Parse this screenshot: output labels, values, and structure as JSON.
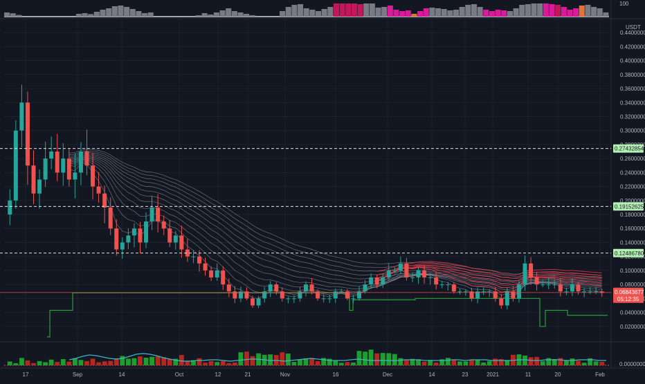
{
  "colors": {
    "background": "#131722",
    "grid": "#1e222d",
    "axis_text": "#b2b5be",
    "candle_up": "#26a69a",
    "candle_down": "#ef5350",
    "ma_line": "#b0b3bc",
    "ribbon_red": "#f23645",
    "ribbon_green": "#1fa45a",
    "stop_line": "#2a9d3a",
    "ind_line": "#3fb8c8",
    "price_tag_green": "#b4f0b4",
    "price_tag_red": "#ef5350",
    "top_gray": "#787b86",
    "top_red": "#c2185b",
    "top_magenta": "#d81b9a",
    "top_orange": "#e0733a"
  },
  "top_panel": {
    "scale_label": "100",
    "bars": [
      30,
      24,
      12,
      0,
      0,
      0,
      0,
      0,
      0,
      0,
      0,
      0,
      20,
      25,
      18,
      35,
      50,
      60,
      75,
      80,
      70,
      55,
      40,
      25,
      30,
      0,
      0,
      0,
      0,
      0,
      0,
      0,
      10,
      25,
      15,
      30,
      45,
      60,
      40,
      30,
      20,
      10,
      0,
      0,
      0,
      0,
      40,
      70,
      85,
      90,
      60,
      50,
      40,
      55,
      70,
      95,
      95,
      95,
      95,
      90,
      95,
      95,
      65,
      70,
      80,
      50,
      40,
      45,
      20,
      40,
      60,
      65,
      60,
      55,
      45,
      50,
      70,
      85,
      90,
      70,
      50,
      40,
      50,
      45,
      40,
      60,
      85,
      90,
      95,
      95,
      95,
      90,
      85,
      70,
      50,
      60,
      80,
      85,
      70,
      60,
      30
    ],
    "bar_colors": [
      "g",
      "g",
      "g",
      "g",
      "g",
      "g",
      "g",
      "g",
      "g",
      "g",
      "g",
      "g",
      "g",
      "g",
      "g",
      "g",
      "g",
      "g",
      "g",
      "g",
      "g",
      "g",
      "g",
      "g",
      "g",
      "g",
      "g",
      "g",
      "g",
      "g",
      "g",
      "g",
      "g",
      "g",
      "g",
      "g",
      "g",
      "g",
      "g",
      "g",
      "g",
      "g",
      "g",
      "g",
      "g",
      "g",
      "g",
      "g",
      "g",
      "g",
      "g",
      "g",
      "g",
      "g",
      "g",
      "r",
      "r",
      "r",
      "r",
      "r",
      "g",
      "g",
      "g",
      "g",
      "m",
      "m",
      "m",
      "m",
      "o",
      "m",
      "m",
      "g",
      "g",
      "g",
      "g",
      "g",
      "g",
      "g",
      "g",
      "g",
      "m",
      "m",
      "m",
      "m",
      "g",
      "g",
      "g",
      "g",
      "g",
      "g",
      "m",
      "m",
      "r",
      "m",
      "m",
      "m",
      "o",
      "g",
      "g",
      "g",
      "g"
    ]
  },
  "price_axis": {
    "unit": "USDT",
    "ticks": [
      "0.44000000",
      "0.42000000",
      "0.40000000",
      "0.38000000",
      "0.36000000",
      "0.34000000",
      "0.32000000",
      "0.30000000",
      "0.28000000",
      "0.26000000",
      "0.24000000",
      "0.22000000",
      "0.20000000",
      "0.18000000",
      "0.16000000",
      "0.14000000",
      "0.12000000",
      "0.10000000",
      "0.08000000",
      "0.06000000",
      "0.04000000",
      "0.02000000"
    ],
    "tick_values": [
      0.44,
      0.42,
      0.4,
      0.38,
      0.36,
      0.34,
      0.32,
      0.3,
      0.28,
      0.26,
      0.24,
      0.22,
      0.2,
      0.18,
      0.16,
      0.14,
      0.12,
      0.1,
      0.08,
      0.06,
      0.04,
      0.02
    ],
    "ylim": [
      0.0,
      0.455
    ],
    "level_labels": [
      {
        "value": 0.27432854,
        "text": "0.27432854"
      },
      {
        "value": 0.19152625,
        "text": "0.19152625"
      },
      {
        "value": 0.1248678,
        "text": "0.12486780"
      }
    ],
    "current_price": "0.06843677",
    "countdown": "05:12:35",
    "current_value": 0.06843677
  },
  "indicator_axis": {
    "tick": "0.00000000"
  },
  "time_axis": {
    "labels": [
      "17",
      "Sep",
      "14",
      "Oct",
      "12",
      "21",
      "Nov",
      "16",
      "Dec",
      "14",
      "23",
      "2021",
      "11",
      "20",
      "Feb"
    ]
  },
  "chart_data": {
    "type": "candlestick",
    "title": "",
    "ylabel": "USDT",
    "ylim": [
      0.0,
      0.455
    ],
    "horizontal_levels": [
      0.27432854,
      0.19152625,
      0.1248678
    ],
    "current_price": 0.06843677,
    "time_labels": [
      "17",
      "Sep",
      "14",
      "Oct",
      "12",
      "21",
      "Nov",
      "16",
      "Dec",
      "14",
      "23",
      "2021",
      "11",
      "20",
      "Feb"
    ],
    "close_series": [
      0.2,
      0.3,
      0.34,
      0.25,
      0.21,
      0.23,
      0.26,
      0.27,
      0.24,
      0.26,
      0.23,
      0.24,
      0.27,
      0.25,
      0.22,
      0.21,
      0.19,
      0.16,
      0.13,
      0.14,
      0.15,
      0.16,
      0.14,
      0.17,
      0.19,
      0.17,
      0.16,
      0.14,
      0.15,
      0.13,
      0.12,
      0.12,
      0.11,
      0.1,
      0.09,
      0.1,
      0.08,
      0.07,
      0.06,
      0.07,
      0.06,
      0.05,
      0.06,
      0.07,
      0.08,
      0.07,
      0.06,
      0.06,
      0.06,
      0.07,
      0.08,
      0.07,
      0.06,
      0.06,
      0.06,
      0.07,
      0.07,
      0.06,
      0.06,
      0.07,
      0.08,
      0.09,
      0.08,
      0.09,
      0.1,
      0.1,
      0.11,
      0.09,
      0.09,
      0.1,
      0.09,
      0.09,
      0.08,
      0.08,
      0.08,
      0.07,
      0.07,
      0.07,
      0.06,
      0.07,
      0.07,
      0.07,
      0.06,
      0.05,
      0.07,
      0.06,
      0.08,
      0.11,
      0.09,
      0.08,
      0.08,
      0.08,
      0.08,
      0.07,
      0.07,
      0.08,
      0.07,
      0.07,
      0.07,
      0.07,
      0.068
    ]
  }
}
